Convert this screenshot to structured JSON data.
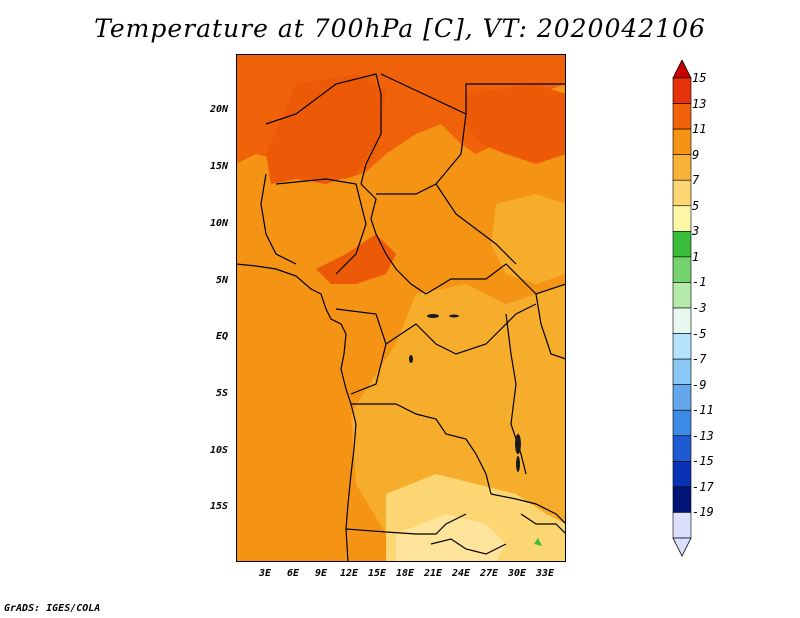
{
  "title": "Temperature at 700hPa [C], VT: 2020042106",
  "credit": "GrADS: IGES/COLA",
  "map": {
    "lat_labels": [
      "20N",
      "15N",
      "10N",
      "5N",
      "EQ",
      "5S",
      "10S",
      "15S"
    ],
    "lon_labels": [
      "3E",
      "6E",
      "9E",
      "12E",
      "15E",
      "18E",
      "21E",
      "24E",
      "27E",
      "30E",
      "33E"
    ],
    "lat_range": [
      -20,
      24
    ],
    "lon_range": [
      0,
      35
    ]
  },
  "colorbar": {
    "labels": [
      "15",
      "13",
      "11",
      "9",
      "7",
      "5",
      "3",
      "1",
      "-1",
      "-3",
      "-5",
      "-7",
      "-9",
      "-11",
      "-13",
      "-15",
      "-17",
      "-19"
    ],
    "colors": [
      "#a50000",
      "#e6320a",
      "#f0620a",
      "#f59314",
      "#f7b23a",
      "#fbd672",
      "#fdf7a8",
      "#3cbc3c",
      "#73d26e",
      "#b4eba8",
      "#e6f8f0",
      "#b4e4fb",
      "#8cc8f5",
      "#64a8eb",
      "#3c8ce6",
      "#1e5ad2",
      "#0a32b4",
      "#001478",
      "#dce0ff"
    ]
  }
}
